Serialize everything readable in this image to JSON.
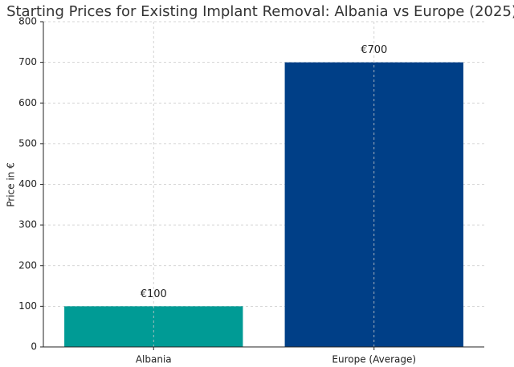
{
  "chart_data": {
    "type": "bar",
    "title": "Starting Prices for Existing Implant Removal: Albania vs Europe (2025)",
    "y_label": "Price in €",
    "categories": [
      "Albania",
      "Europe (Average)"
    ],
    "values": [
      100,
      700
    ],
    "value_labels": [
      "€100",
      "€700"
    ],
    "colors": [
      "#009b95",
      "#003f87"
    ],
    "ylim": [
      0,
      800
    ],
    "yticks": [
      0,
      100,
      200,
      300,
      400,
      500,
      600,
      700,
      800
    ],
    "grid": true
  }
}
